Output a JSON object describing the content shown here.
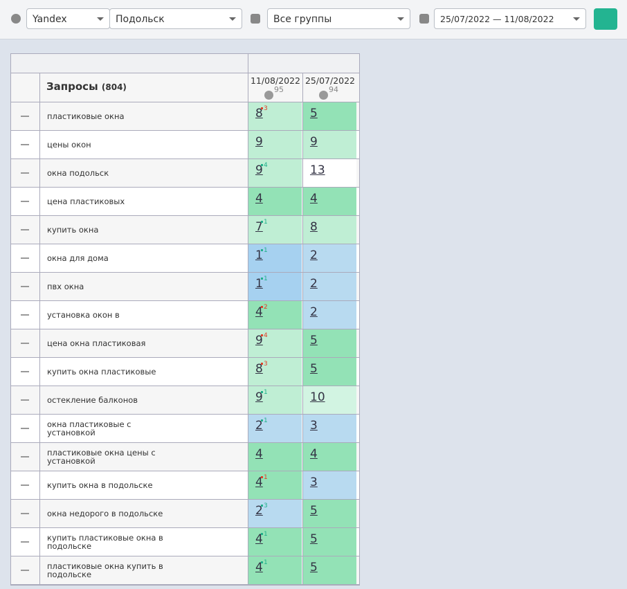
{
  "toolbar": {
    "search_engine": "Yandex",
    "region": "Подольск",
    "group": "Все группы",
    "date_range": "25/07/2022 — 11/08/2022"
  },
  "table": {
    "title": "Запросы",
    "count": "(804)",
    "columns": [
      {
        "date": "11/08/2022",
        "percent": 95
      },
      {
        "date": "25/07/2022",
        "percent": 94
      }
    ],
    "rows": [
      {
        "query": "пластиковые окна",
        "pos": [
          8,
          5
        ],
        "change": 3,
        "trend": "worse"
      },
      {
        "query": "цены окон",
        "pos": [
          9,
          9
        ],
        "change": null,
        "trend": null
      },
      {
        "query": "окна подольск",
        "pos": [
          9,
          13
        ],
        "change": 4,
        "trend": "better"
      },
      {
        "query": "цена пластиковых",
        "pos": [
          4,
          4
        ],
        "change": null,
        "trend": null
      },
      {
        "query": "купить окна",
        "pos": [
          7,
          8
        ],
        "change": 1,
        "trend": "better"
      },
      {
        "query": "окна для дома",
        "pos": [
          1,
          2
        ],
        "change": 1,
        "trend": "better"
      },
      {
        "query": "пвх окна",
        "pos": [
          1,
          2
        ],
        "change": 1,
        "trend": "better"
      },
      {
        "query": "установка окон в",
        "pos": [
          4,
          2
        ],
        "change": 2,
        "trend": "worse"
      },
      {
        "query": "цена окна пластиковая",
        "pos": [
          9,
          5
        ],
        "change": 4,
        "trend": "worse"
      },
      {
        "query": "купить окна пластиковые",
        "pos": [
          8,
          5
        ],
        "change": 3,
        "trend": "worse"
      },
      {
        "query": "остекление балконов",
        "pos": [
          9,
          10
        ],
        "change": 1,
        "trend": "better"
      },
      {
        "query": "окна пластиковые с установкой",
        "pos": [
          2,
          3
        ],
        "change": 1,
        "trend": "better"
      },
      {
        "query": "пластиковые окна цены с установкой",
        "pos": [
          4,
          4
        ],
        "change": null,
        "trend": null
      },
      {
        "query": "купить окна в подольске",
        "pos": [
          4,
          3
        ],
        "change": 1,
        "trend": "worse"
      },
      {
        "query": "окна недорого в подольске",
        "pos": [
          2,
          5
        ],
        "change": 3,
        "trend": "better"
      },
      {
        "query": "купить пластиковые окна в подольске",
        "pos": [
          4,
          5
        ],
        "change": 1,
        "trend": "better"
      },
      {
        "query": "пластиковые окна купить в подольске",
        "pos": [
          4,
          5
        ],
        "change": 1,
        "trend": "better"
      }
    ]
  }
}
